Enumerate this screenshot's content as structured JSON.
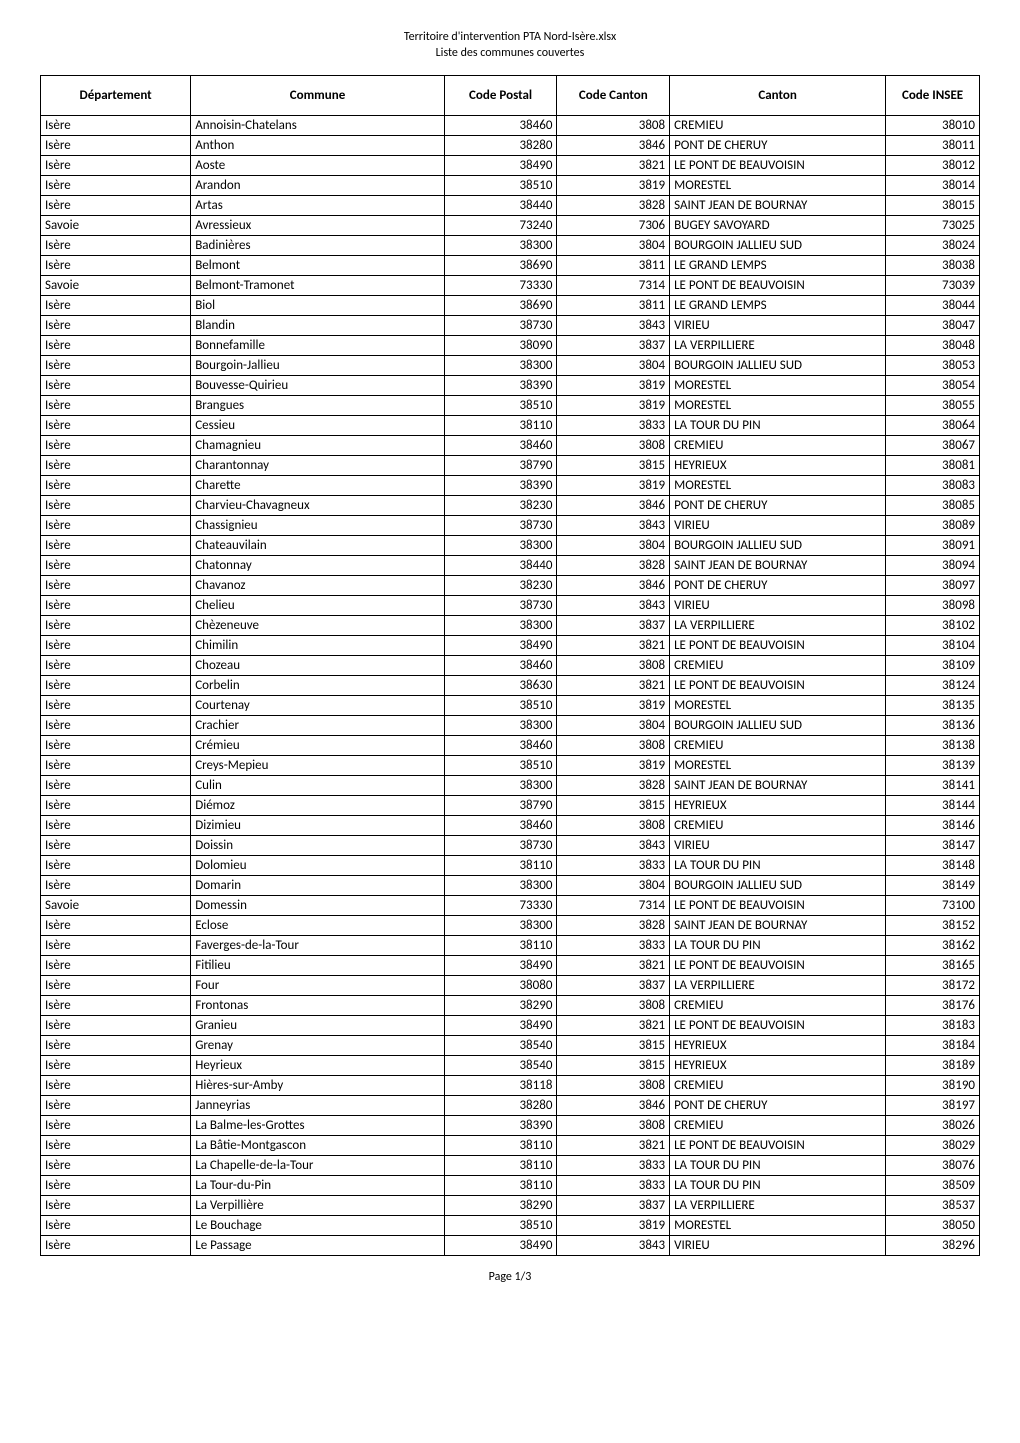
{
  "header": {
    "line1": "Territoire d'intervention PTA Nord-Isère.xlsx",
    "line2": "Liste des communes couvertes"
  },
  "table": {
    "type": "table",
    "columns": [
      "Département",
      "Commune",
      "Code Postal",
      "Code Canton",
      "Canton",
      "Code INSEE"
    ],
    "column_align": [
      "left",
      "left",
      "right",
      "right",
      "left",
      "right"
    ],
    "column_widths_pct": [
      16,
      27,
      12,
      12,
      23,
      10
    ],
    "header_fontweight": "bold",
    "header_fontsize_pt": 10,
    "cell_fontsize_pt": 10,
    "border_color": "#000000",
    "background_color": "#ffffff",
    "text_color": "#000000",
    "rows": [
      [
        "Isère",
        "Annoisin-Chatelans",
        "38460",
        "3808",
        "CREMIEU",
        "38010"
      ],
      [
        "Isère",
        "Anthon",
        "38280",
        "3846",
        "PONT DE CHERUY",
        "38011"
      ],
      [
        "Isère",
        "Aoste",
        "38490",
        "3821",
        "LE PONT DE BEAUVOISIN",
        "38012"
      ],
      [
        "Isère",
        "Arandon",
        "38510",
        "3819",
        "MORESTEL",
        "38014"
      ],
      [
        "Isère",
        "Artas",
        "38440",
        "3828",
        "SAINT JEAN DE BOURNAY",
        "38015"
      ],
      [
        "Savoie",
        "Avressieux",
        "73240",
        "7306",
        "BUGEY SAVOYARD",
        "73025"
      ],
      [
        "Isère",
        "Badinières",
        "38300",
        "3804",
        "BOURGOIN JALLIEU SUD",
        "38024"
      ],
      [
        "Isère",
        "Belmont",
        "38690",
        "3811",
        "LE GRAND LEMPS",
        "38038"
      ],
      [
        "Savoie",
        "Belmont-Tramonet",
        "73330",
        "7314",
        "LE PONT DE BEAUVOISIN",
        "73039"
      ],
      [
        "Isère",
        "Biol",
        "38690",
        "3811",
        "LE GRAND LEMPS",
        "38044"
      ],
      [
        "Isère",
        "Blandin",
        "38730",
        "3843",
        "VIRIEU",
        "38047"
      ],
      [
        "Isère",
        "Bonnefamille",
        "38090",
        "3837",
        "LA VERPILLIERE",
        "38048"
      ],
      [
        "Isère",
        "Bourgoin-Jallieu",
        "38300",
        "3804",
        "BOURGOIN JALLIEU SUD",
        "38053"
      ],
      [
        "Isère",
        "Bouvesse-Quirieu",
        "38390",
        "3819",
        "MORESTEL",
        "38054"
      ],
      [
        "Isère",
        "Brangues",
        "38510",
        "3819",
        "MORESTEL",
        "38055"
      ],
      [
        "Isère",
        "Cessieu",
        "38110",
        "3833",
        "LA TOUR DU PIN",
        "38064"
      ],
      [
        "Isère",
        "Chamagnieu",
        "38460",
        "3808",
        "CREMIEU",
        "38067"
      ],
      [
        "Isère",
        "Charantonnay",
        "38790",
        "3815",
        "HEYRIEUX",
        "38081"
      ],
      [
        "Isère",
        "Charette",
        "38390",
        "3819",
        "MORESTEL",
        "38083"
      ],
      [
        "Isère",
        "Charvieu-Chavagneux",
        "38230",
        "3846",
        "PONT DE CHERUY",
        "38085"
      ],
      [
        "Isère",
        "Chassignieu",
        "38730",
        "3843",
        "VIRIEU",
        "38089"
      ],
      [
        "Isère",
        "Chateauvilain",
        "38300",
        "3804",
        "BOURGOIN JALLIEU SUD",
        "38091"
      ],
      [
        "Isère",
        "Chatonnay",
        "38440",
        "3828",
        "SAINT JEAN DE BOURNAY",
        "38094"
      ],
      [
        "Isère",
        "Chavanoz",
        "38230",
        "3846",
        "PONT DE CHERUY",
        "38097"
      ],
      [
        "Isère",
        "Chelieu",
        "38730",
        "3843",
        "VIRIEU",
        "38098"
      ],
      [
        "Isère",
        "Chèzeneuve",
        "38300",
        "3837",
        "LA VERPILLIERE",
        "38102"
      ],
      [
        "Isère",
        "Chimilin",
        "38490",
        "3821",
        "LE PONT DE BEAUVOISIN",
        "38104"
      ],
      [
        "Isère",
        "Chozeau",
        "38460",
        "3808",
        "CREMIEU",
        "38109"
      ],
      [
        "Isère",
        "Corbelin",
        "38630",
        "3821",
        "LE PONT DE BEAUVOISIN",
        "38124"
      ],
      [
        "Isère",
        "Courtenay",
        "38510",
        "3819",
        "MORESTEL",
        "38135"
      ],
      [
        "Isère",
        "Crachier",
        "38300",
        "3804",
        "BOURGOIN JALLIEU SUD",
        "38136"
      ],
      [
        "Isère",
        "Crémieu",
        "38460",
        "3808",
        "CREMIEU",
        "38138"
      ],
      [
        "Isère",
        "Creys-Mepieu",
        "38510",
        "3819",
        "MORESTEL",
        "38139"
      ],
      [
        "Isère",
        "Culin",
        "38300",
        "3828",
        "SAINT JEAN DE BOURNAY",
        "38141"
      ],
      [
        "Isère",
        "Diémoz",
        "38790",
        "3815",
        "HEYRIEUX",
        "38144"
      ],
      [
        "Isère",
        "Dizimieu",
        "38460",
        "3808",
        "CREMIEU",
        "38146"
      ],
      [
        "Isère",
        "Doissin",
        "38730",
        "3843",
        "VIRIEU",
        "38147"
      ],
      [
        "Isère",
        "Dolomieu",
        "38110",
        "3833",
        "LA TOUR DU PIN",
        "38148"
      ],
      [
        "Isère",
        "Domarin",
        "38300",
        "3804",
        "BOURGOIN JALLIEU SUD",
        "38149"
      ],
      [
        "Savoie",
        "Domessin",
        "73330",
        "7314",
        "LE PONT DE BEAUVOISIN",
        "73100"
      ],
      [
        "Isère",
        "Eclose",
        "38300",
        "3828",
        "SAINT JEAN DE BOURNAY",
        "38152"
      ],
      [
        "Isère",
        "Faverges-de-la-Tour",
        "38110",
        "3833",
        "LA TOUR DU PIN",
        "38162"
      ],
      [
        "Isère",
        "Fitilieu",
        "38490",
        "3821",
        "LE PONT DE BEAUVOISIN",
        "38165"
      ],
      [
        "Isère",
        "Four",
        "38080",
        "3837",
        "LA VERPILLIERE",
        "38172"
      ],
      [
        "Isère",
        "Frontonas",
        "38290",
        "3808",
        "CREMIEU",
        "38176"
      ],
      [
        "Isère",
        "Granieu",
        "38490",
        "3821",
        "LE PONT DE BEAUVOISIN",
        "38183"
      ],
      [
        "Isère",
        "Grenay",
        "38540",
        "3815",
        "HEYRIEUX",
        "38184"
      ],
      [
        "Isère",
        "Heyrieux",
        "38540",
        "3815",
        "HEYRIEUX",
        "38189"
      ],
      [
        "Isère",
        "Hières-sur-Amby",
        "38118",
        "3808",
        "CREMIEU",
        "38190"
      ],
      [
        "Isère",
        "Janneyrias",
        "38280",
        "3846",
        "PONT DE CHERUY",
        "38197"
      ],
      [
        "Isère",
        "La Balme-les-Grottes",
        "38390",
        "3808",
        "CREMIEU",
        "38026"
      ],
      [
        "Isère",
        "La Bâtie-Montgascon",
        "38110",
        "3821",
        "LE PONT DE BEAUVOISIN",
        "38029"
      ],
      [
        "Isère",
        "La Chapelle-de-la-Tour",
        "38110",
        "3833",
        "LA TOUR DU PIN",
        "38076"
      ],
      [
        "Isère",
        "La Tour-du-Pin",
        "38110",
        "3833",
        "LA TOUR DU PIN",
        "38509"
      ],
      [
        "Isère",
        "La Verpillière",
        "38290",
        "3837",
        "LA VERPILLIERE",
        "38537"
      ],
      [
        "Isère",
        "Le Bouchage",
        "38510",
        "3819",
        "MORESTEL",
        "38050"
      ],
      [
        "Isère",
        "Le Passage",
        "38490",
        "3843",
        "VIRIEU",
        "38296"
      ]
    ]
  },
  "footer": {
    "page_label": "Page 1/3"
  }
}
